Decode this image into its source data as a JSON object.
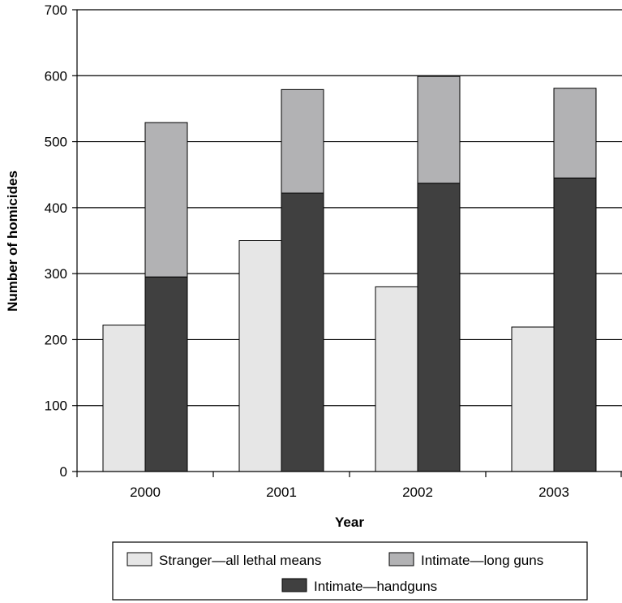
{
  "chart_data": {
    "type": "bar",
    "title": "",
    "xlabel": "Year",
    "ylabel": "Number of homicides",
    "categories": [
      "2000",
      "2001",
      "2002",
      "2003"
    ],
    "ylim": [
      0,
      700
    ],
    "yticks": [
      0,
      100,
      200,
      300,
      400,
      500,
      600,
      700
    ],
    "grid": true,
    "legend_position": "bottom",
    "series": [
      {
        "name": "Stranger—all lethal means",
        "values": [
          222,
          350,
          280,
          219
        ],
        "color": "#e6e6e6",
        "stack": "stranger"
      },
      {
        "name": "Intimate—handguns",
        "values": [
          295,
          422,
          437,
          445
        ],
        "color": "#404040",
        "stack": "intimate"
      },
      {
        "name": "Intimate—long guns",
        "values": [
          234,
          157,
          162,
          136
        ],
        "color": "#b2b2b4",
        "stack": "intimate"
      }
    ]
  }
}
